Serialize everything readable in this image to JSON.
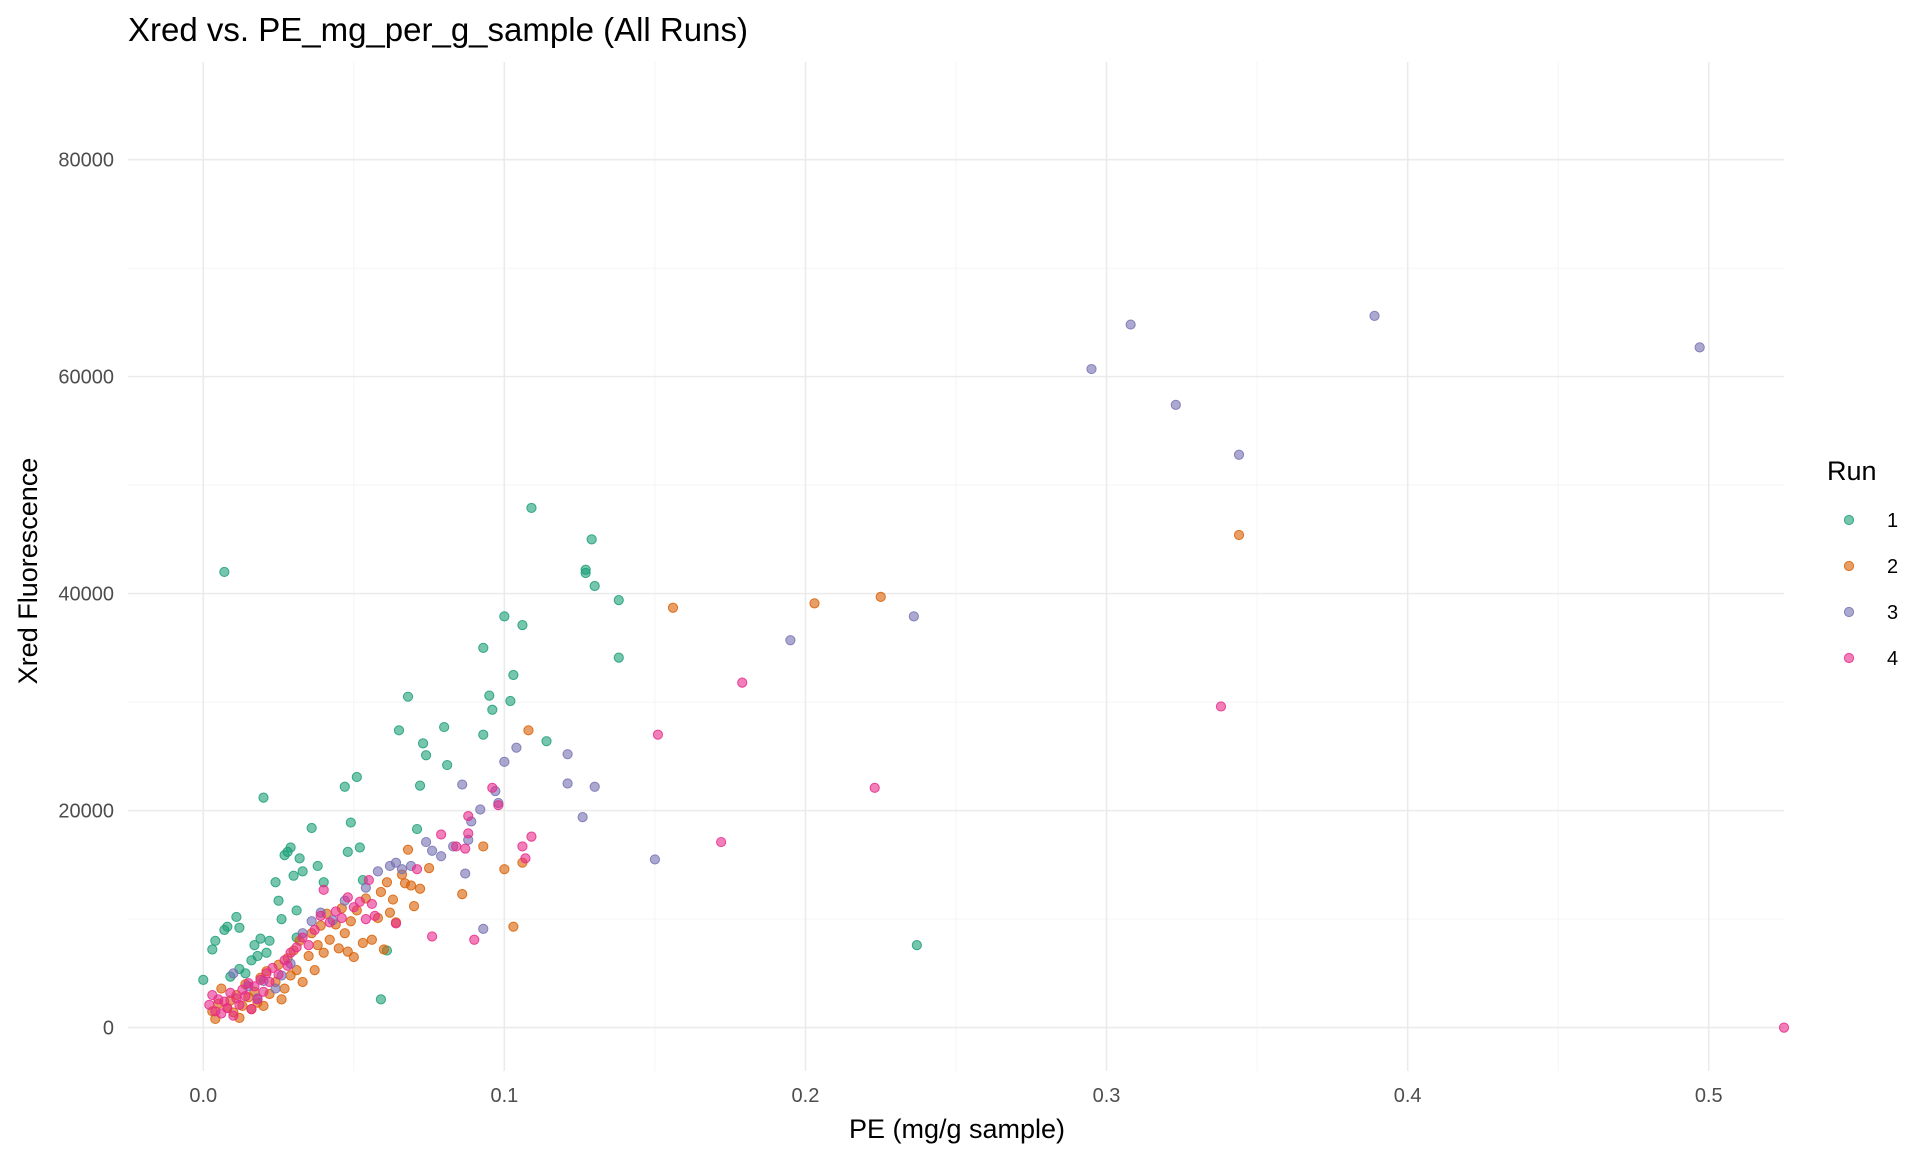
{
  "chart_data": {
    "type": "scatter",
    "title": "Xred vs. PE_mg_per_g_sample (All Runs)",
    "xlabel": "PE (mg/g sample)",
    "ylabel": "Xred Fluorescence",
    "xlim": [
      -0.025,
      0.525
    ],
    "ylim": [
      -4000,
      89000
    ],
    "x_ticks": [
      0.0,
      0.1,
      0.2,
      0.3,
      0.4,
      0.5
    ],
    "x_tick_labels": [
      "0.0",
      "0.1",
      "0.2",
      "0.3",
      "0.4",
      "0.5"
    ],
    "y_ticks": [
      0,
      20000,
      40000,
      60000,
      80000
    ],
    "y_tick_labels": [
      "0",
      "20000",
      "40000",
      "60000",
      "80000"
    ],
    "grid": true,
    "legend": {
      "title": "Run",
      "position": "right"
    },
    "series": [
      {
        "name": "1",
        "color": "#1b9e77",
        "points": [
          [
            0.0,
            4400
          ],
          [
            0.003,
            7200
          ],
          [
            0.004,
            8000
          ],
          [
            0.007,
            42000
          ],
          [
            0.007,
            9000
          ],
          [
            0.008,
            9300
          ],
          [
            0.011,
            10200
          ],
          [
            0.012,
            9200
          ],
          [
            0.014,
            5000
          ],
          [
            0.016,
            6200
          ],
          [
            0.017,
            7600
          ],
          [
            0.018,
            6600
          ],
          [
            0.019,
            8200
          ],
          [
            0.02,
            21200
          ],
          [
            0.022,
            8000
          ],
          [
            0.024,
            13400
          ],
          [
            0.025,
            11700
          ],
          [
            0.026,
            10000
          ],
          [
            0.027,
            15900
          ],
          [
            0.028,
            16200
          ],
          [
            0.029,
            16600
          ],
          [
            0.03,
            14000
          ],
          [
            0.031,
            8300
          ],
          [
            0.031,
            10800
          ],
          [
            0.032,
            15600
          ],
          [
            0.033,
            14400
          ],
          [
            0.036,
            18400
          ],
          [
            0.038,
            14900
          ],
          [
            0.04,
            13400
          ],
          [
            0.047,
            22200
          ],
          [
            0.048,
            16200
          ],
          [
            0.049,
            18900
          ],
          [
            0.051,
            23100
          ],
          [
            0.052,
            16600
          ],
          [
            0.053,
            13600
          ],
          [
            0.059,
            2600
          ],
          [
            0.061,
            7100
          ],
          [
            0.065,
            27400
          ],
          [
            0.068,
            30500
          ],
          [
            0.071,
            18300
          ],
          [
            0.072,
            22300
          ],
          [
            0.073,
            26200
          ],
          [
            0.074,
            25100
          ],
          [
            0.08,
            27700
          ],
          [
            0.081,
            24200
          ],
          [
            0.093,
            35000
          ],
          [
            0.093,
            27000
          ],
          [
            0.095,
            30600
          ],
          [
            0.096,
            29300
          ],
          [
            0.1,
            37900
          ],
          [
            0.102,
            30100
          ],
          [
            0.103,
            32500
          ],
          [
            0.106,
            37100
          ],
          [
            0.109,
            47900
          ],
          [
            0.114,
            26400
          ],
          [
            0.127,
            42200
          ],
          [
            0.127,
            41900
          ],
          [
            0.129,
            45000
          ],
          [
            0.13,
            40700
          ],
          [
            0.138,
            39400
          ],
          [
            0.138,
            34100
          ],
          [
            0.237,
            7600
          ],
          [
            0.012,
            5400
          ],
          [
            0.021,
            6900
          ],
          [
            0.009,
            4700
          ]
        ]
      },
      {
        "name": "2",
        "color": "#d95f02",
        "points": [
          [
            0.003,
            1500
          ],
          [
            0.004,
            800
          ],
          [
            0.005,
            2200
          ],
          [
            0.006,
            3600
          ],
          [
            0.008,
            1800
          ],
          [
            0.009,
            2500
          ],
          [
            0.01,
            1400
          ],
          [
            0.011,
            3000
          ],
          [
            0.012,
            900
          ],
          [
            0.013,
            2000
          ],
          [
            0.014,
            4000
          ],
          [
            0.015,
            2800
          ],
          [
            0.016,
            1700
          ],
          [
            0.017,
            3300
          ],
          [
            0.018,
            2300
          ],
          [
            0.019,
            4600
          ],
          [
            0.02,
            2000
          ],
          [
            0.021,
            5200
          ],
          [
            0.022,
            3100
          ],
          [
            0.024,
            4200
          ],
          [
            0.025,
            5800
          ],
          [
            0.026,
            2600
          ],
          [
            0.027,
            3600
          ],
          [
            0.028,
            6400
          ],
          [
            0.029,
            4800
          ],
          [
            0.03,
            7100
          ],
          [
            0.031,
            5300
          ],
          [
            0.032,
            8000
          ],
          [
            0.033,
            4200
          ],
          [
            0.035,
            6600
          ],
          [
            0.036,
            8700
          ],
          [
            0.037,
            5300
          ],
          [
            0.038,
            7600
          ],
          [
            0.039,
            9400
          ],
          [
            0.04,
            6900
          ],
          [
            0.041,
            10500
          ],
          [
            0.042,
            8100
          ],
          [
            0.044,
            9500
          ],
          [
            0.045,
            7300
          ],
          [
            0.046,
            11000
          ],
          [
            0.047,
            8700
          ],
          [
            0.048,
            7000
          ],
          [
            0.049,
            9800
          ],
          [
            0.05,
            6500
          ],
          [
            0.051,
            10800
          ],
          [
            0.053,
            7800
          ],
          [
            0.054,
            11900
          ],
          [
            0.056,
            8100
          ],
          [
            0.058,
            10100
          ],
          [
            0.059,
            12500
          ],
          [
            0.06,
            7200
          ],
          [
            0.061,
            13400
          ],
          [
            0.062,
            10600
          ],
          [
            0.063,
            11800
          ],
          [
            0.064,
            9700
          ],
          [
            0.066,
            14100
          ],
          [
            0.067,
            13300
          ],
          [
            0.068,
            16400
          ],
          [
            0.069,
            13100
          ],
          [
            0.07,
            11200
          ],
          [
            0.072,
            12800
          ],
          [
            0.075,
            14700
          ],
          [
            0.086,
            12300
          ],
          [
            0.093,
            16700
          ],
          [
            0.1,
            14600
          ],
          [
            0.103,
            9300
          ],
          [
            0.106,
            15200
          ],
          [
            0.108,
            27400
          ],
          [
            0.156,
            38700
          ],
          [
            0.203,
            39100
          ],
          [
            0.225,
            39700
          ],
          [
            0.344,
            45400
          ]
        ]
      },
      {
        "name": "3",
        "color": "#7570b3",
        "points": [
          [
            0.01,
            5000
          ],
          [
            0.015,
            3800
          ],
          [
            0.018,
            2700
          ],
          [
            0.02,
            4300
          ],
          [
            0.024,
            3600
          ],
          [
            0.026,
            4800
          ],
          [
            0.029,
            5900
          ],
          [
            0.033,
            8700
          ],
          [
            0.036,
            9800
          ],
          [
            0.039,
            10600
          ],
          [
            0.043,
            9900
          ],
          [
            0.047,
            11700
          ],
          [
            0.054,
            12900
          ],
          [
            0.058,
            14400
          ],
          [
            0.062,
            14900
          ],
          [
            0.064,
            15200
          ],
          [
            0.066,
            14600
          ],
          [
            0.069,
            14900
          ],
          [
            0.074,
            17100
          ],
          [
            0.076,
            16300
          ],
          [
            0.079,
            15800
          ],
          [
            0.083,
            16700
          ],
          [
            0.086,
            22400
          ],
          [
            0.087,
            14200
          ],
          [
            0.088,
            17300
          ],
          [
            0.089,
            19000
          ],
          [
            0.092,
            20100
          ],
          [
            0.093,
            9100
          ],
          [
            0.097,
            21800
          ],
          [
            0.098,
            20700
          ],
          [
            0.1,
            24500
          ],
          [
            0.104,
            25800
          ],
          [
            0.121,
            25200
          ],
          [
            0.121,
            22500
          ],
          [
            0.126,
            19400
          ],
          [
            0.13,
            22200
          ],
          [
            0.15,
            15500
          ],
          [
            0.195,
            35700
          ],
          [
            0.236,
            37900
          ],
          [
            0.295,
            60700
          ],
          [
            0.308,
            64800
          ],
          [
            0.323,
            57400
          ],
          [
            0.344,
            52800
          ],
          [
            0.389,
            65600
          ],
          [
            0.497,
            62700
          ]
        ]
      },
      {
        "name": "4",
        "color": "#e7298a",
        "points": [
          [
            0.002,
            2100
          ],
          [
            0.003,
            3000
          ],
          [
            0.004,
            1500
          ],
          [
            0.005,
            2600
          ],
          [
            0.006,
            1300
          ],
          [
            0.007,
            2400
          ],
          [
            0.008,
            1800
          ],
          [
            0.009,
            3200
          ],
          [
            0.01,
            1100
          ],
          [
            0.011,
            2700
          ],
          [
            0.012,
            2100
          ],
          [
            0.013,
            3500
          ],
          [
            0.014,
            2900
          ],
          [
            0.015,
            4100
          ],
          [
            0.016,
            1700
          ],
          [
            0.017,
            3800
          ],
          [
            0.018,
            2600
          ],
          [
            0.019,
            4400
          ],
          [
            0.02,
            3300
          ],
          [
            0.021,
            5000
          ],
          [
            0.022,
            4200
          ],
          [
            0.023,
            5500
          ],
          [
            0.025,
            4900
          ],
          [
            0.027,
            6200
          ],
          [
            0.028,
            5700
          ],
          [
            0.029,
            6900
          ],
          [
            0.031,
            7400
          ],
          [
            0.033,
            8300
          ],
          [
            0.035,
            7600
          ],
          [
            0.037,
            9000
          ],
          [
            0.039,
            10300
          ],
          [
            0.04,
            12700
          ],
          [
            0.042,
            9700
          ],
          [
            0.044,
            10700
          ],
          [
            0.046,
            10100
          ],
          [
            0.048,
            12000
          ],
          [
            0.05,
            11100
          ],
          [
            0.052,
            11600
          ],
          [
            0.054,
            10000
          ],
          [
            0.055,
            13600
          ],
          [
            0.056,
            11400
          ],
          [
            0.057,
            10300
          ],
          [
            0.064,
            9600
          ],
          [
            0.071,
            14600
          ],
          [
            0.076,
            8400
          ],
          [
            0.079,
            17800
          ],
          [
            0.084,
            16700
          ],
          [
            0.087,
            16500
          ],
          [
            0.088,
            19500
          ],
          [
            0.088,
            17900
          ],
          [
            0.09,
            8100
          ],
          [
            0.096,
            22100
          ],
          [
            0.098,
            20500
          ],
          [
            0.106,
            16700
          ],
          [
            0.107,
            15600
          ],
          [
            0.109,
            17600
          ],
          [
            0.151,
            27000
          ],
          [
            0.172,
            17100
          ],
          [
            0.179,
            31800
          ],
          [
            0.223,
            22100
          ],
          [
            0.338,
            29600
          ],
          [
            0.525,
            0
          ]
        ]
      }
    ]
  }
}
